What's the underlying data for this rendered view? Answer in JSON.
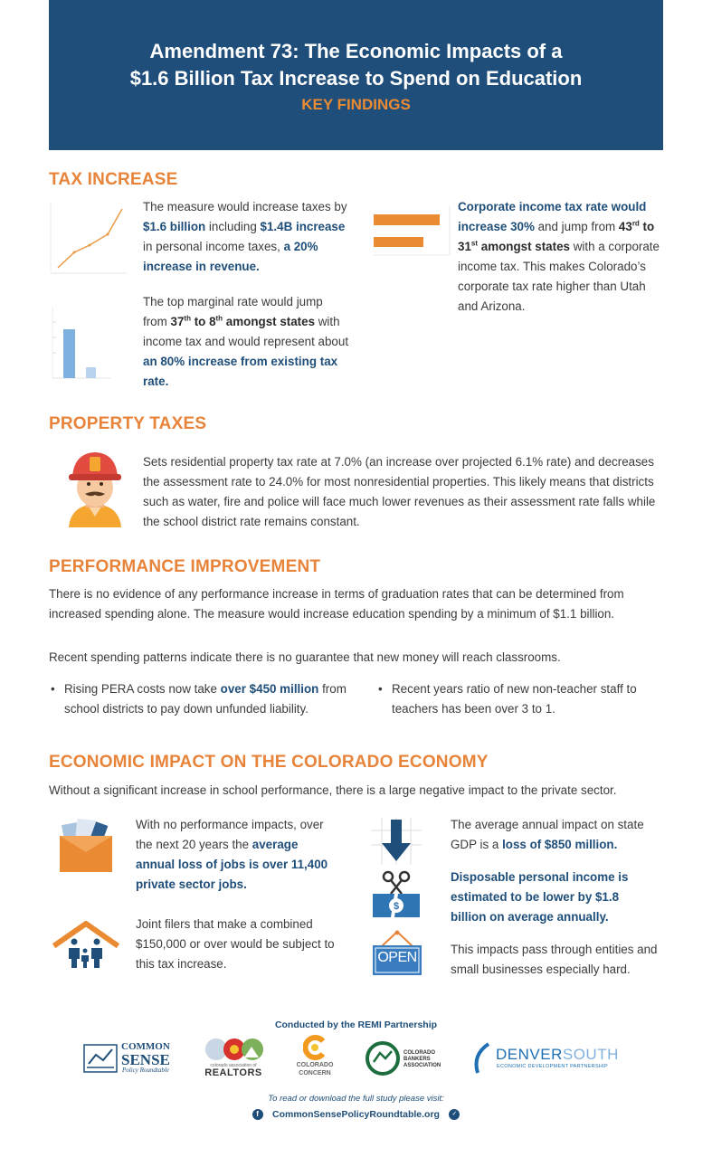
{
  "header": {
    "title_line1": "Amendment 73: The Economic Impacts of a",
    "title_line2": "$1.6 Billion Tax Increase to Spend on Education",
    "subtitle": "KEY FINDINGS"
  },
  "tax_increase": {
    "heading": "TAX INCREASE",
    "block1": {
      "t1": "The measure would increase taxes by ",
      "b1": "$1.6 billion",
      "t2": " including ",
      "b2": "$1.4B increase",
      "t3": " in personal income taxes, ",
      "b3": "a 20% increase in revenue."
    },
    "block2": {
      "t1": "The top marginal rate would jump from ",
      "b1a": "37",
      "sup1": "th",
      "b1b": " to 8",
      "sup2": "th",
      "b1c": " amongst states",
      "t2": " with income tax and would represent about ",
      "b2": "an 80% increase from existing tax rate."
    },
    "block3": {
      "b1": "Corporate income tax rate would increase 30%",
      "t1": " and jump from ",
      "b2a": "43",
      "sup1": "rd",
      "b2b": " to 31",
      "sup2": "st",
      "b2c": " amongst states",
      "t2": " with a corporate income tax. This makes Colorado’s corporate tax rate higher than Utah and Arizona."
    }
  },
  "property_taxes": {
    "heading": "PROPERTY TAXES",
    "text": "Sets residential property tax rate at 7.0% (an increase over projected 6.1% rate) and decreases the assessment rate to 24.0% for most nonresidential properties. This likely means that districts such as water, fire and police will face much lower revenues as their assessment rate falls while the school district rate remains constant."
  },
  "performance": {
    "heading": "PERFORMANCE IMPROVEMENT",
    "p1": "There is no evidence of any performance increase in terms of graduation rates that can be determined from increased spending alone. The measure would increase education spending by a minimum of $1.1 billion.",
    "p2": "Recent spending patterns indicate there is no guarantee that new money will reach classrooms.",
    "bullet1_t1": "Rising PERA costs now take ",
    "bullet1_b": "over $450 million",
    "bullet1_t2": " from school districts to pay down unfunded liability.",
    "bullet2": "Recent years ratio of new non-teacher staff to teachers has been over 3 to 1."
  },
  "economic": {
    "heading": "ECONOMIC IMPACT ON THE COLORADO ECONOMY",
    "intro": "Without a significant increase in school performance, there is a large negative impact to the private sector.",
    "jobs_t1": "With no performance impacts, over the next 20 years the ",
    "jobs_b": "average annual loss of jobs is over 11,400 private sector jobs.",
    "joint": "Joint filers that make a combined $150,000 or over would be subject to this tax increase.",
    "gdp_t1": "The average annual impact on state GDP is a ",
    "gdp_b": "loss of $850 million.",
    "income_b": "Disposable personal income is estimated to be lower by $1.8 billion on average annually.",
    "open_sign": "OPEN",
    "entities": "This impacts pass through entities and small businesses especially hard."
  },
  "footer": {
    "conducted": "Conducted by the REMI Partnership",
    "logo1_a": "COMMON",
    "logo1_b": "SENSE",
    "logo1_c": "Policy Roundtable",
    "logo2_a": "colorado association of",
    "logo2_b": "REALTORS",
    "logo3_a": "COLORADO",
    "logo3_b": "CONCERN",
    "logo4": "COLORADO BANKERS ASSOCIATION",
    "logo5_a": "DENVER",
    "logo5_b": "SOUTH",
    "logo5_c": "ECONOMIC DEVELOPMENT PARTNERSHIP",
    "visit": "To read or download the full study please visit:",
    "url": "CommonSensePolicyRoundtable.org"
  },
  "colors": {
    "navy": "#1e4e79",
    "orange": "#e8833a",
    "text": "#3b3b3b"
  }
}
